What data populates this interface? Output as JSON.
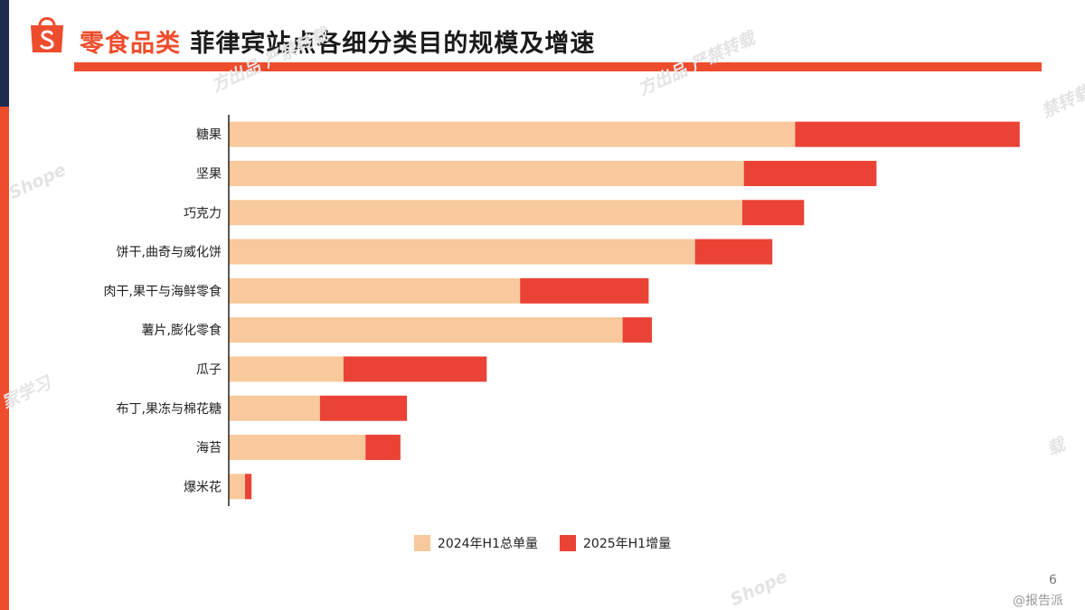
{
  "header": {
    "title_highlight": "零食品类",
    "title_rest": "菲律宾站点各细分类目的规模及增速"
  },
  "colors": {
    "base": "#f8c99c",
    "increment": "#ea4335",
    "accent": "#ee4d2d",
    "navy": "#1f2a4f"
  },
  "icons": {
    "logo": "shopee-bag-icon"
  },
  "watermarks": [
    "Shope",
    "方出品 严禁转载",
    "方出品 严禁转载",
    "禁转载",
    "家学习",
    "载",
    "Shope"
  ],
  "chart_data": {
    "type": "bar",
    "orientation": "horizontal",
    "stacked": true,
    "categories": [
      "糖果",
      "坚果",
      "巧克力",
      "饼干,曲奇与威化饼",
      "肉干,果干与海鲜零食",
      "薯片,膨化零食",
      "瓜子",
      "布丁,果冻与棉花糖",
      "海苔",
      "爆米花"
    ],
    "series": [
      {
        "name": "2024年H1总单量",
        "color": "#f8c99c",
        "values": [
          69.6,
          63.3,
          63.1,
          57.3,
          35.8,
          48.4,
          14.1,
          11.2,
          16.8,
          2.0
        ]
      },
      {
        "name": "2025年H1增量",
        "color": "#ea4335",
        "values": [
          27.6,
          16.3,
          7.6,
          9.5,
          15.8,
          3.6,
          17.6,
          10.7,
          4.3,
          0.8
        ]
      }
    ],
    "xlim": [
      0,
      100
    ],
    "grid": false,
    "legend_position": "bottom"
  },
  "footer": {
    "page_number": "6",
    "source": "@报告派"
  }
}
